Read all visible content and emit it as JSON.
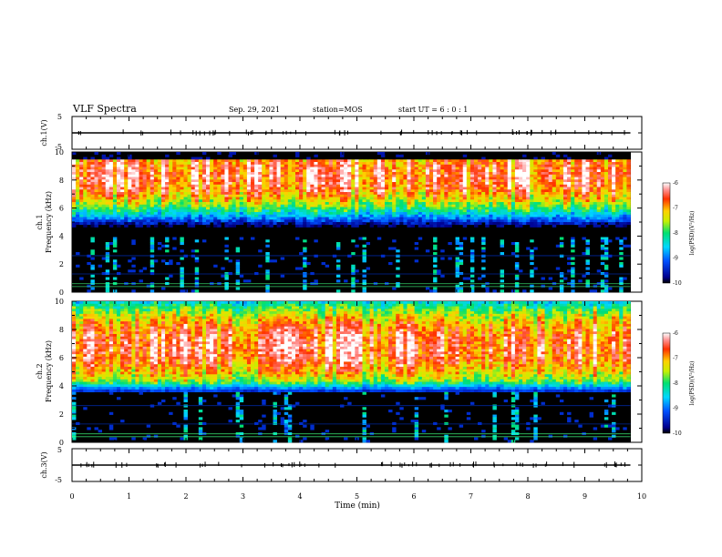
{
  "header": {
    "title": "VLF Spectra",
    "date": "Sep. 29, 2021",
    "station": "station=MOS",
    "start": "start UT =   6 : 0  : 1"
  },
  "chart_data": [
    {
      "type": "line",
      "panel": "ch1-waveform",
      "ylabel": "ch.1(V)",
      "ylim": [
        -5,
        5
      ],
      "yticks": [
        "5",
        "-5"
      ],
      "xlim": [
        0,
        10
      ],
      "series": [
        {
          "x": [
            0,
            9.8
          ],
          "y": [
            0,
            0
          ]
        }
      ]
    },
    {
      "type": "heatmap",
      "panel": "ch1-spectrogram",
      "ylabel_1": "ch.1",
      "ylabel_2": "Frequency (kHz)",
      "ylim": [
        0,
        10
      ],
      "yticks": [
        "0",
        "2",
        "4",
        "6",
        "8",
        "10"
      ],
      "xlim": [
        0,
        10
      ],
      "data_end_x": 9.8,
      "band_kHz": [
        4,
        9.5
      ],
      "peak_kHz": 8.3,
      "colorbar": {
        "label": "log(PSD)(V²/Hz)",
        "range": [
          -10,
          -6
        ],
        "ticks": [
          "-6",
          "-7",
          "-8",
          "-9",
          "-10"
        ]
      }
    },
    {
      "type": "heatmap",
      "panel": "ch2-spectrogram",
      "ylabel_1": "ch.2",
      "ylabel_2": "Frequency (kHz)",
      "ylim": [
        0,
        10
      ],
      "yticks": [
        "0",
        "2",
        "4",
        "6",
        "8",
        "10"
      ],
      "xlim": [
        0,
        10
      ],
      "data_end_x": 9.8,
      "band_kHz": [
        3.5,
        10
      ],
      "peak_kHz": 6.8,
      "colorbar": {
        "label": "log(PSD)(V²/Hz)",
        "range": [
          -10,
          -6
        ],
        "ticks": [
          "-6",
          "-7",
          "-8",
          "-9",
          "-10"
        ]
      }
    },
    {
      "type": "line",
      "panel": "ch3-waveform",
      "ylabel": "ch.3(V)",
      "ylim": [
        -5,
        5
      ],
      "yticks": [
        "5",
        "-5"
      ],
      "xlim": [
        0,
        10
      ],
      "series": [
        {
          "x": [
            0,
            9.8
          ],
          "y": [
            0,
            0
          ]
        }
      ]
    }
  ],
  "xaxis": {
    "label": "Time (min)",
    "ticks": [
      "0",
      "1",
      "2",
      "3",
      "4",
      "5",
      "6",
      "7",
      "8",
      "9",
      "10"
    ]
  }
}
